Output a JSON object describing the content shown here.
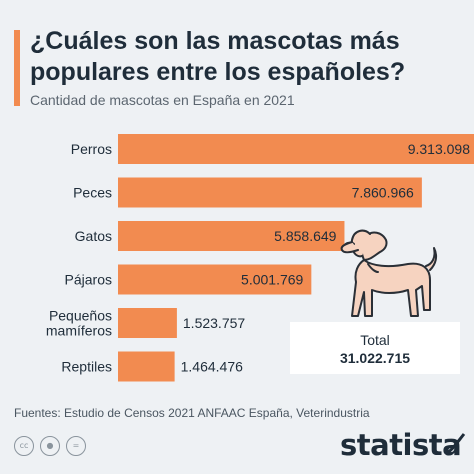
{
  "title": "¿Cuáles son las mascotas más populares entre los españoles?",
  "subtitle": "Cantidad de mascotas en España en 2021",
  "total": {
    "label": "Total",
    "value": "31.022.715"
  },
  "source": "Fuentes: Estudio de Censos 2021 ANFAAC España, Veterindustria",
  "brand": "statista",
  "colors": {
    "bar": "#f28b50",
    "text": "#1f2d3a",
    "background": "#eef1f4"
  },
  "icons": {
    "license": [
      "cc-icon",
      "by-icon",
      "nd-icon"
    ],
    "illustration": "dog-icon"
  },
  "chart_data": {
    "type": "bar",
    "orientation": "horizontal",
    "categories": [
      "Perros",
      "Peces",
      "Gatos",
      "Pájaros",
      "Pequeños mamíferos",
      "Reptiles"
    ],
    "category_lines": [
      [
        "Perros"
      ],
      [
        "Peces"
      ],
      [
        "Gatos"
      ],
      [
        "Pájaros"
      ],
      [
        "Pequeños",
        "mamíferos"
      ],
      [
        "Reptiles"
      ]
    ],
    "values": [
      9313098,
      7860966,
      5858649,
      5001769,
      1523757,
      1464476
    ],
    "value_labels": [
      "9.313.098",
      "7.860.966",
      "5.858.649",
      "5.001.769",
      "1.523.757",
      "1.464.476"
    ],
    "title": "¿Cuáles son las mascotas más populares entre los españoles?",
    "subtitle": "Cantidad de mascotas en España en 2021",
    "xlabel": "",
    "ylabel": "",
    "grid": false,
    "legend": "none"
  }
}
